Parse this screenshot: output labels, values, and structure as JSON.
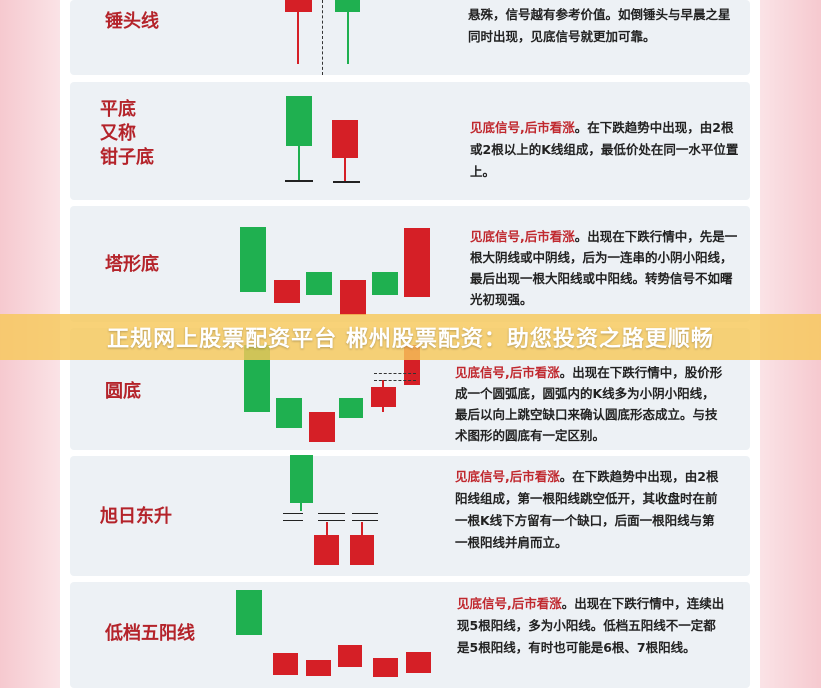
{
  "patterns": [
    {
      "name": "锤头线",
      "desc": "悬殊，信号越有参考价值。如倒锤头与早晨之星同时出现，见底信号就更加可靠。"
    },
    {
      "name": "平底\n又称\n钳子底",
      "signal": "见底信号,后市看涨",
      "desc": "。在下跌趋势中出现，由2根或2根以上的K线组成，最低价处在同一水平位置上。"
    },
    {
      "name": "塔形底",
      "signal": "见底信号,后市看涨",
      "desc": "。出现在下跌行情中，先是一根大阴线或中阴线，后为一连串的小阴小阳线，最后出现一根大阳线或中阳线。转势信号不如曙光初现强。"
    },
    {
      "name": "圆底",
      "signal": "见底信号,后市看涨",
      "desc": "。出现在下跌行情中，股价形成一个圆弧底，圆弧内的K线多为小阴小阳线，最后以向上跳空缺口来确认圆底形态成立。与技术图形的圆底有一定区别。"
    },
    {
      "name": "旭日东升",
      "signal": "见底信号,后市看涨",
      "desc": "。在下跌趋势中出现，由2根阳线组成，第一根阳线跳空低开，其收盘时在前一根K线下方留有一个缺口，后面一根阳线与第一根阳线并肩而立。"
    },
    {
      "name": "低档五阳线",
      "signal": "见底信号,后市看涨",
      "desc": "。出现在下跌行情中，连续出现5根阳线，多为小阳线。低档五阳线不一定都是5根阳线，有时也可能是6根、7根阳线。"
    }
  ],
  "banner": "正规网上股票配资平台 郴州股票配资：助您投资之路更顺畅",
  "colors": {
    "up": "#d51f26",
    "down": "#1fb050",
    "label": "#b4232a"
  }
}
